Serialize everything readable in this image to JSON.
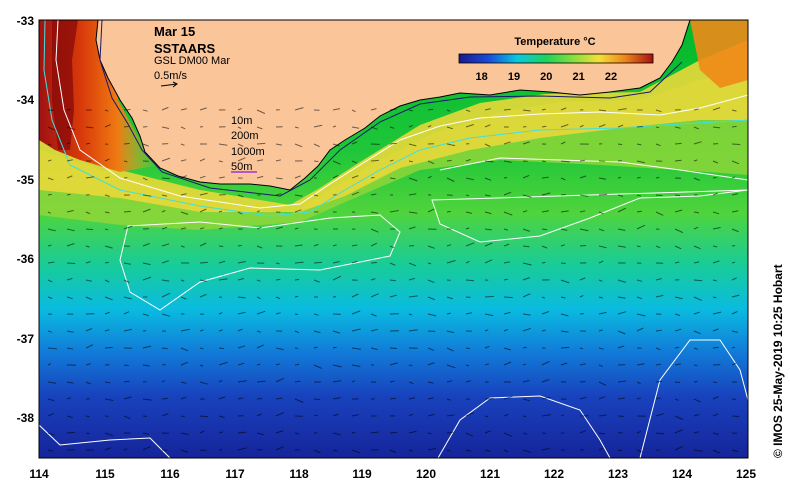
{
  "header": {
    "date": "Mar 15",
    "product": "SSTAARS",
    "overlay": "GSL DM00 Mar",
    "vector_scale": "0.5m/s"
  },
  "depth_legend": [
    "10m",
    "200m",
    "1000m",
    "50m"
  ],
  "colorbar": {
    "title": "Temperature °C",
    "ticks": [
      "18",
      "19",
      "20",
      "21",
      "22"
    ],
    "range": [
      17.3,
      23.3
    ]
  },
  "credit": "© IMOS 25-May-2019 10:25 Hobart",
  "axes": {
    "lon_ticks": [
      "114",
      "115",
      "116",
      "117",
      "118",
      "119",
      "120",
      "121",
      "122",
      "123",
      "124",
      "125"
    ],
    "lat_ticks": [
      "-33",
      "-34",
      "-35",
      "-36",
      "-37",
      "-38"
    ]
  },
  "colors": {
    "land": "#fbc59a",
    "cold": "#1a1f9a",
    "mid": "#3fd23a",
    "warm": "#e84a08"
  }
}
